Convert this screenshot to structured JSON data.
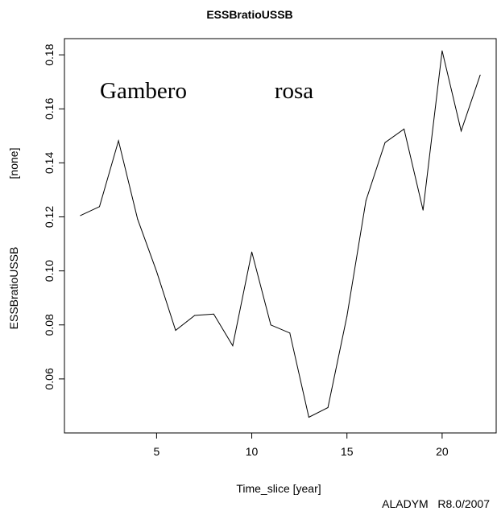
{
  "chart_data": {
    "type": "line",
    "title": "ESSBratioUSSB",
    "xlabel": "Time_slice [year]",
    "ylabel": "ESSBratioUSSB",
    "ylabel_unit": "[none]",
    "annotations": [
      "Gambero",
      "rosa"
    ],
    "footer": "ALADYM   R8.0/2007",
    "xlim": [
      0.16,
      22.84
    ],
    "ylim": [
      0.04,
      0.186
    ],
    "x_ticks": [
      5,
      10,
      15,
      20
    ],
    "y_ticks": [
      0.06,
      0.08,
      0.1,
      0.12,
      0.14,
      0.16,
      0.18
    ],
    "y_tick_labels": [
      "0.06",
      "0.08",
      "0.10",
      "0.12",
      "0.14",
      "0.16",
      "0.18"
    ],
    "grid": false,
    "legend": "none",
    "line_color": "#000000",
    "x": [
      1,
      2,
      3,
      4,
      5,
      6,
      7,
      8,
      9,
      10,
      11,
      12,
      13,
      14,
      15,
      16,
      17,
      18,
      19,
      20,
      21,
      22
    ],
    "y": [
      0.1205,
      0.1238,
      0.1482,
      0.1192,
      0.0998,
      0.078,
      0.0835,
      0.084,
      0.0723,
      0.107,
      0.08,
      0.077,
      0.0458,
      0.0494,
      0.0832,
      0.126,
      0.1475,
      0.1525,
      0.1225,
      0.1815,
      0.1518,
      0.1725
    ]
  }
}
